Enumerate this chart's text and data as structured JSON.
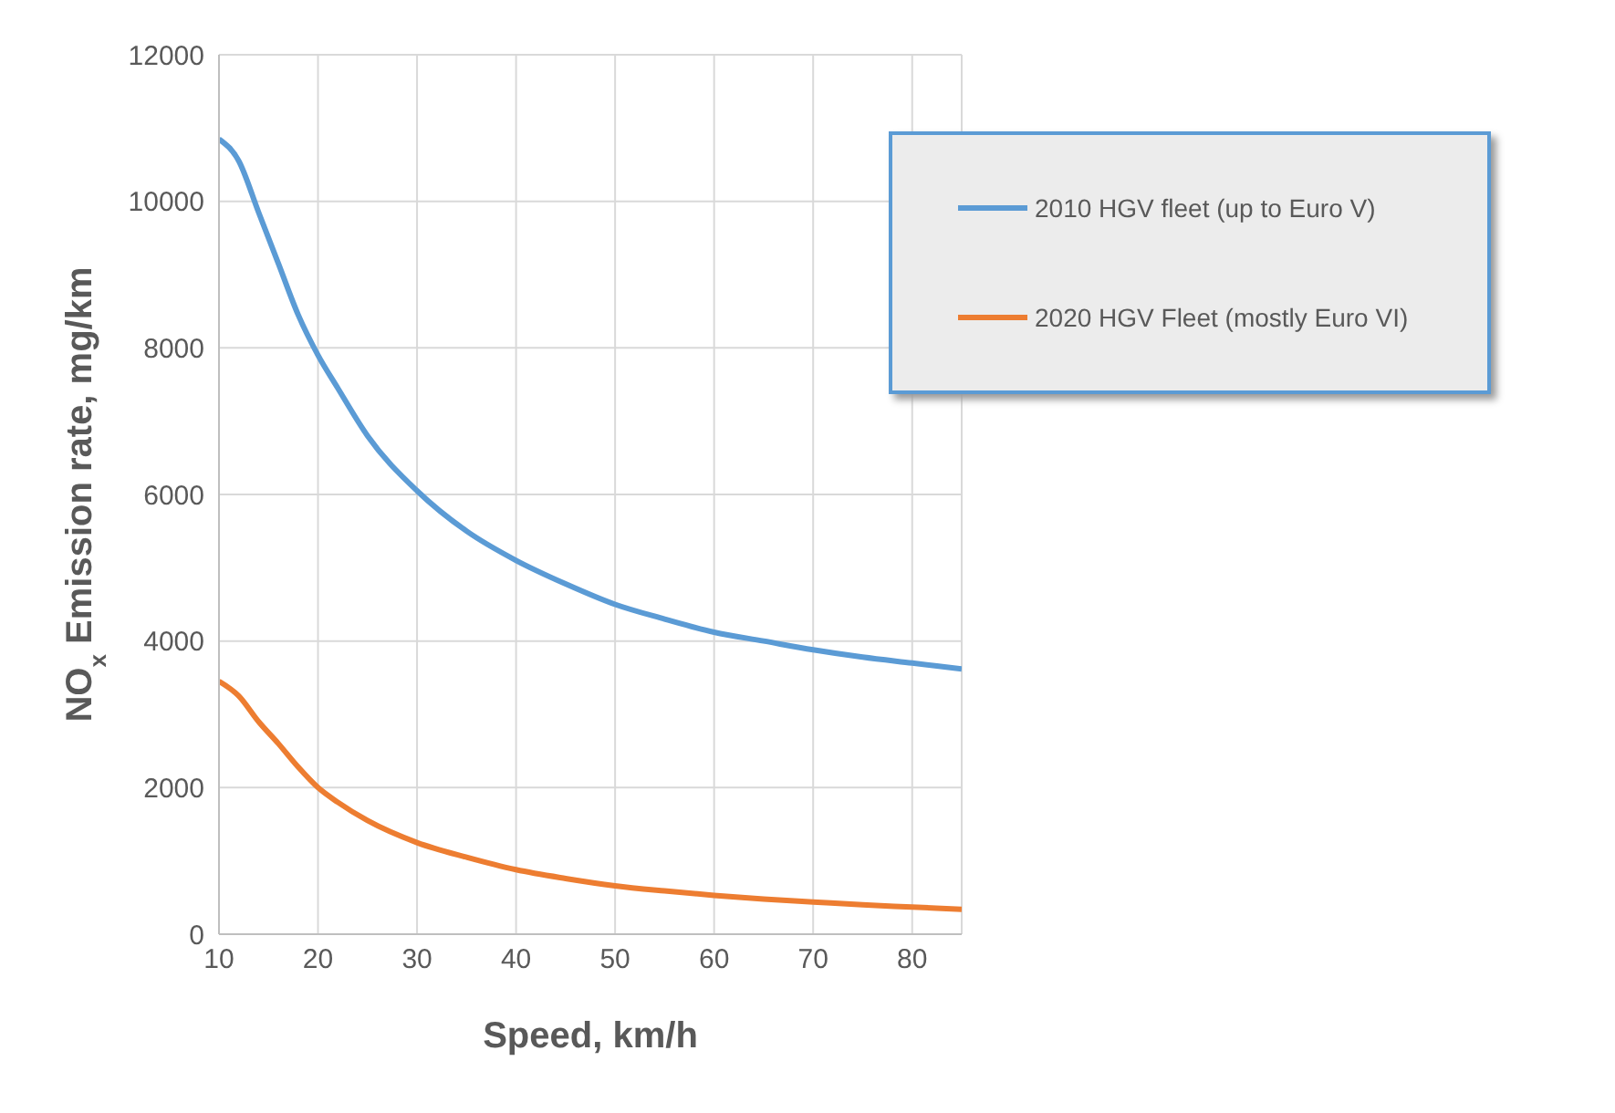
{
  "chart_data": {
    "type": "line",
    "xlabel": "Speed, km/h",
    "ylabel": "NO$_{x}$ Emission rate, mg/km",
    "x": [
      10,
      12,
      14,
      16,
      18,
      20,
      22,
      25,
      30,
      35,
      40,
      45,
      50,
      55,
      60,
      65,
      70,
      75,
      80,
      85
    ],
    "series": [
      {
        "name": "2010 HGV fleet (up to Euro V)",
        "color": "#5b9bd5",
        "values": [
          10850,
          10550,
          9850,
          9150,
          8450,
          7900,
          7450,
          6800,
          6050,
          5500,
          5100,
          4780,
          4500,
          4300,
          4120,
          4000,
          3880,
          3780,
          3700,
          3620
        ]
      },
      {
        "name": "2020 HGV Fleet (mostly Euro VI)",
        "color": "#ed7d31",
        "values": [
          3450,
          3250,
          2900,
          2600,
          2280,
          2000,
          1800,
          1550,
          1250,
          1050,
          880,
          760,
          660,
          590,
          530,
          480,
          440,
          400,
          370,
          340
        ]
      }
    ],
    "xlim": [
      10,
      85
    ],
    "xticks": [
      10,
      20,
      30,
      40,
      50,
      60,
      70,
      80
    ],
    "ylim": [
      0,
      12000
    ],
    "yticks": [
      0,
      2000,
      4000,
      6000,
      8000,
      10000,
      12000
    ],
    "grid": true,
    "legend": "top right",
    "marker": "none",
    "line_style": "solid"
  }
}
